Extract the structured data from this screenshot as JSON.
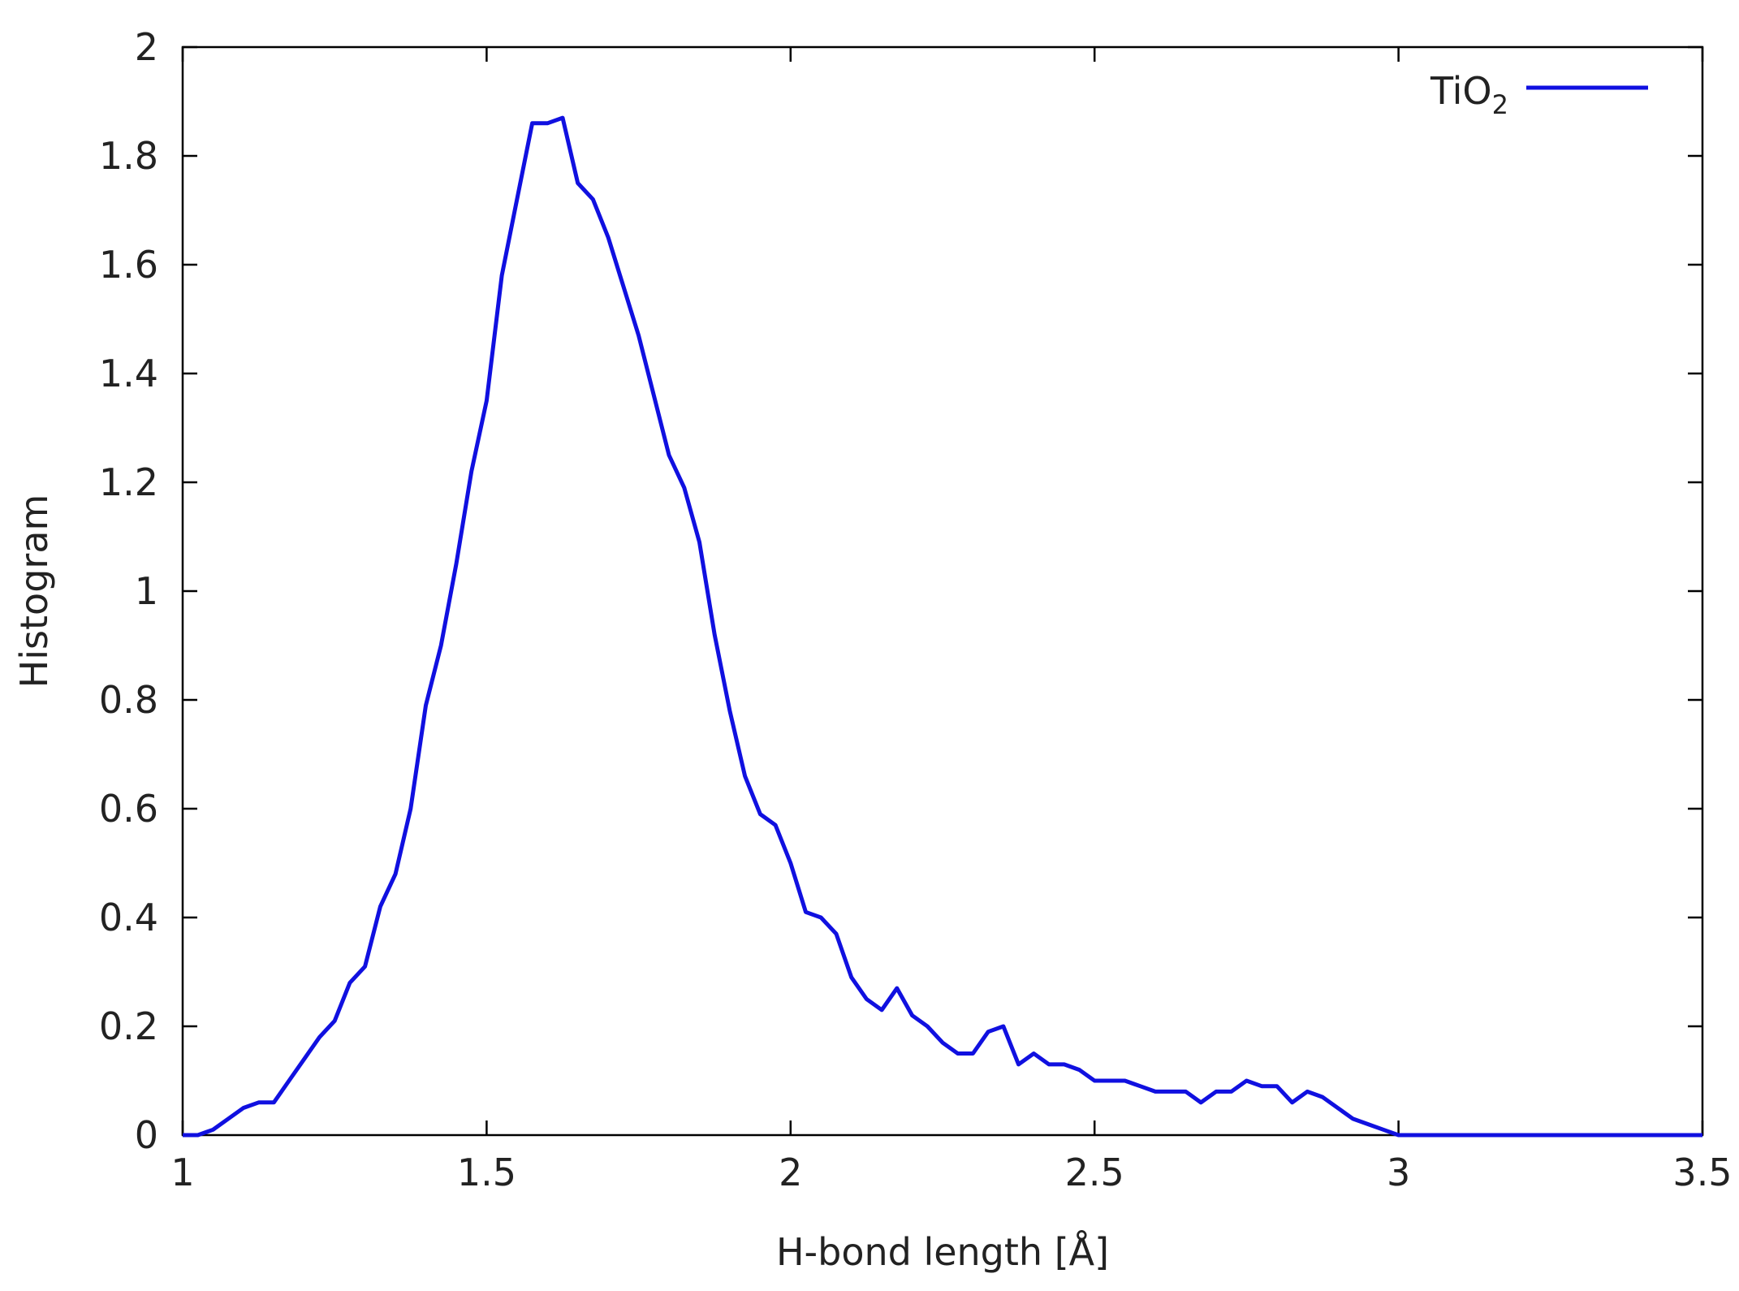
{
  "chart_data": {
    "type": "line",
    "xlabel": "H-bond length [Å]",
    "ylabel": "Histogram",
    "xlim": [
      1,
      3.5
    ],
    "ylim": [
      0,
      2
    ],
    "x_ticks": [
      "1",
      "1.5",
      "2",
      "2.5",
      "3",
      "3.5"
    ],
    "y_ticks": [
      "0",
      "0.2",
      "0.4",
      "0.6",
      "0.8",
      "1",
      "1.2",
      "1.4",
      "1.6",
      "1.8",
      "2"
    ],
    "grid": false,
    "legend_position": "top-right",
    "legend": {
      "base": "TiO",
      "subscript": "2"
    },
    "series": [
      {
        "name": "TiO2",
        "color": "#1010e0",
        "x": [
          1.0,
          1.025,
          1.05,
          1.075,
          1.1,
          1.125,
          1.15,
          1.175,
          1.2,
          1.225,
          1.25,
          1.275,
          1.3,
          1.325,
          1.35,
          1.375,
          1.4,
          1.425,
          1.45,
          1.475,
          1.5,
          1.525,
          1.55,
          1.575,
          1.6,
          1.625,
          1.65,
          1.675,
          1.7,
          1.725,
          1.75,
          1.775,
          1.8,
          1.825,
          1.85,
          1.875,
          1.9,
          1.925,
          1.95,
          1.975,
          2.0,
          2.025,
          2.05,
          2.075,
          2.1,
          2.125,
          2.15,
          2.175,
          2.2,
          2.225,
          2.25,
          2.275,
          2.3,
          2.325,
          2.35,
          2.375,
          2.4,
          2.425,
          2.45,
          2.475,
          2.5,
          2.525,
          2.55,
          2.575,
          2.6,
          2.625,
          2.65,
          2.675,
          2.7,
          2.725,
          2.75,
          2.775,
          2.8,
          2.825,
          2.85,
          2.875,
          2.9,
          2.925,
          2.95,
          2.975,
          3.0,
          3.1,
          3.2,
          3.3,
          3.4,
          3.5
        ],
        "y": [
          0.0,
          0.0,
          0.01,
          0.03,
          0.05,
          0.06,
          0.06,
          0.1,
          0.14,
          0.18,
          0.21,
          0.28,
          0.31,
          0.42,
          0.48,
          0.6,
          0.79,
          0.9,
          1.05,
          1.22,
          1.35,
          1.58,
          1.72,
          1.86,
          1.86,
          1.87,
          1.75,
          1.72,
          1.65,
          1.56,
          1.47,
          1.36,
          1.25,
          1.19,
          1.09,
          0.92,
          0.78,
          0.66,
          0.59,
          0.57,
          0.5,
          0.41,
          0.4,
          0.37,
          0.29,
          0.25,
          0.23,
          0.27,
          0.22,
          0.2,
          0.17,
          0.15,
          0.15,
          0.19,
          0.2,
          0.13,
          0.15,
          0.13,
          0.13,
          0.12,
          0.1,
          0.1,
          0.1,
          0.09,
          0.08,
          0.08,
          0.08,
          0.06,
          0.08,
          0.08,
          0.1,
          0.09,
          0.09,
          0.06,
          0.08,
          0.07,
          0.05,
          0.03,
          0.02,
          0.01,
          0.0,
          0.0,
          0.0,
          0.0,
          0.0,
          0.0
        ]
      }
    ]
  }
}
